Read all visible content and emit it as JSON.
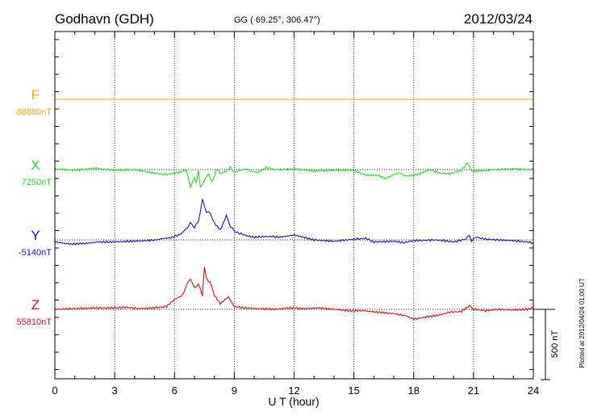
{
  "header": {
    "station": "Godhavn (GDH)",
    "coords": "GG ( 69.25°, 306.47°)",
    "date": "2012/03/24"
  },
  "footnote": "Plotted at 2012/04/24 01:00 UT",
  "scale_bar_label": "500 nT",
  "chart_data": {
    "type": "line",
    "xlabel": "U T (hour)",
    "xlim": [
      0,
      24
    ],
    "x_ticks": [
      "0",
      "3",
      "6",
      "9",
      "12",
      "15",
      "18",
      "21",
      "24"
    ],
    "scale_bar_nT": 500,
    "grid": true,
    "series": [
      {
        "name": "F",
        "baseline_label": "88880nT",
        "color": "#f2a900",
        "points": [
          [
            0,
            0
          ],
          [
            24,
            0
          ]
        ]
      },
      {
        "name": "X",
        "baseline_label": "7250nT",
        "color": "#22dd22",
        "points": [
          [
            0,
            5
          ],
          [
            1.0,
            -5
          ],
          [
            2.0,
            10
          ],
          [
            3.0,
            -5
          ],
          [
            4.0,
            0
          ],
          [
            5.0,
            -25
          ],
          [
            5.6,
            -35
          ],
          [
            6.2,
            -20
          ],
          [
            6.6,
            -5
          ],
          [
            6.8,
            -120
          ],
          [
            7.0,
            -60
          ],
          [
            7.1,
            -90
          ],
          [
            7.2,
            -5
          ],
          [
            7.3,
            -130
          ],
          [
            7.5,
            -80
          ],
          [
            7.7,
            -25
          ],
          [
            7.9,
            -90
          ],
          [
            8.1,
            0
          ],
          [
            8.3,
            -25
          ],
          [
            8.5,
            -20
          ],
          [
            8.8,
            15
          ],
          [
            9.0,
            -20
          ],
          [
            9.3,
            -5
          ],
          [
            9.6,
            5
          ],
          [
            9.8,
            -10
          ],
          [
            10.2,
            -20
          ],
          [
            10.6,
            15
          ],
          [
            11.0,
            0
          ],
          [
            12.0,
            5
          ],
          [
            13.0,
            -10
          ],
          [
            14.0,
            -5
          ],
          [
            15.0,
            -5
          ],
          [
            15.6,
            -40
          ],
          [
            16.2,
            -40
          ],
          [
            16.6,
            -65
          ],
          [
            17.0,
            -35
          ],
          [
            17.3,
            -25
          ],
          [
            17.6,
            -45
          ],
          [
            18.0,
            -40
          ],
          [
            18.3,
            -30
          ],
          [
            18.8,
            0
          ],
          [
            19.3,
            -25
          ],
          [
            19.8,
            -30
          ],
          [
            20.4,
            -5
          ],
          [
            20.7,
            50
          ],
          [
            20.9,
            -10
          ],
          [
            21.4,
            -10
          ],
          [
            22.0,
            0
          ],
          [
            23.0,
            5
          ],
          [
            24,
            0
          ]
        ]
      },
      {
        "name": "Y",
        "baseline_label": "-5140nT",
        "color": "#1111cc",
        "points": [
          [
            0,
            -15
          ],
          [
            0.8,
            -30
          ],
          [
            1.5,
            -25
          ],
          [
            2.2,
            -15
          ],
          [
            3.0,
            -15
          ],
          [
            3.8,
            -10
          ],
          [
            4.6,
            -5
          ],
          [
            5.1,
            0
          ],
          [
            5.4,
            10
          ],
          [
            5.8,
            15
          ],
          [
            6.3,
            40
          ],
          [
            6.6,
            80
          ],
          [
            6.8,
            120
          ],
          [
            7.0,
            90
          ],
          [
            7.2,
            130
          ],
          [
            7.4,
            285
          ],
          [
            7.6,
            200
          ],
          [
            7.8,
            190
          ],
          [
            8.0,
            120
          ],
          [
            8.3,
            70
          ],
          [
            8.6,
            170
          ],
          [
            8.8,
            100
          ],
          [
            9.0,
            60
          ],
          [
            9.6,
            30
          ],
          [
            10.0,
            20
          ],
          [
            10.8,
            25
          ],
          [
            11.3,
            20
          ],
          [
            12.0,
            35
          ],
          [
            12.3,
            25
          ],
          [
            13.0,
            0
          ],
          [
            14.0,
            -10
          ],
          [
            15.0,
            5
          ],
          [
            15.6,
            10
          ],
          [
            16.0,
            -15
          ],
          [
            17.0,
            -10
          ],
          [
            17.5,
            -20
          ],
          [
            18.0,
            -5
          ],
          [
            18.4,
            -5
          ],
          [
            19.0,
            0
          ],
          [
            19.5,
            -5
          ],
          [
            20.0,
            -15
          ],
          [
            20.6,
            5
          ],
          [
            20.8,
            35
          ],
          [
            20.9,
            -10
          ],
          [
            21.1,
            20
          ],
          [
            21.6,
            5
          ],
          [
            22.2,
            0
          ],
          [
            23.0,
            -5
          ],
          [
            24,
            -20
          ]
        ]
      },
      {
        "name": "Z",
        "baseline_label": "55810nT",
        "color": "#dd1111",
        "points": [
          [
            0,
            0
          ],
          [
            1.0,
            5
          ],
          [
            2.0,
            10
          ],
          [
            3.0,
            10
          ],
          [
            3.6,
            15
          ],
          [
            4.2,
            5
          ],
          [
            5.0,
            10
          ],
          [
            5.6,
            20
          ],
          [
            6.0,
            70
          ],
          [
            6.4,
            100
          ],
          [
            6.6,
            170
          ],
          [
            6.8,
            220
          ],
          [
            7.0,
            150
          ],
          [
            7.2,
            180
          ],
          [
            7.4,
            100
          ],
          [
            7.5,
            300
          ],
          [
            7.6,
            220
          ],
          [
            7.8,
            190
          ],
          [
            8.0,
            100
          ],
          [
            8.3,
            40
          ],
          [
            8.7,
            90
          ],
          [
            9.0,
            20
          ],
          [
            9.5,
            10
          ],
          [
            10.2,
            5
          ],
          [
            11.0,
            0
          ],
          [
            11.8,
            10
          ],
          [
            12.5,
            5
          ],
          [
            13.2,
            10
          ],
          [
            14.0,
            0
          ],
          [
            14.8,
            -10
          ],
          [
            15.5,
            -10
          ],
          [
            16.2,
            -20
          ],
          [
            17.0,
            -30
          ],
          [
            17.6,
            -45
          ],
          [
            18.0,
            -70
          ],
          [
            18.6,
            -55
          ],
          [
            19.3,
            -40
          ],
          [
            19.8,
            -20
          ],
          [
            20.4,
            -15
          ],
          [
            20.8,
            25
          ],
          [
            21.0,
            0
          ],
          [
            21.6,
            -10
          ],
          [
            22.2,
            0
          ],
          [
            23.0,
            -5
          ],
          [
            23.7,
            0
          ],
          [
            24,
            10
          ]
        ]
      }
    ]
  }
}
